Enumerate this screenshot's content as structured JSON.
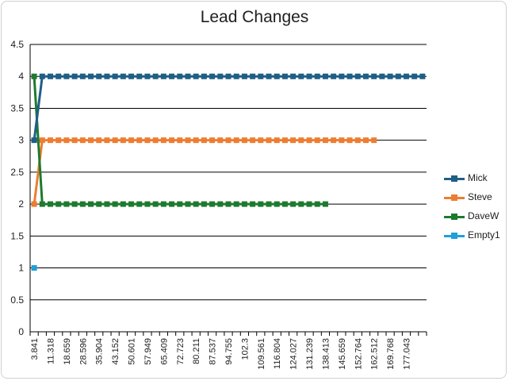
{
  "chart_data": {
    "type": "line",
    "title": "Lead Changes",
    "xlabel": "",
    "ylabel": "",
    "ylim": [
      0,
      4.5
    ],
    "y_ticks": [
      "0",
      "0.5",
      "1",
      "1.5",
      "2",
      "2.5",
      "3",
      "3.5",
      "4",
      "4.5"
    ],
    "grid": true,
    "legend_position": "right",
    "x_tick_labels": [
      "3.841",
      "11.318",
      "18.659",
      "28.596",
      "35.904",
      "43.152",
      "50.601",
      "57.949",
      "65.409",
      "72.723",
      "80.211",
      "87.537",
      "94.755",
      "102.3",
      "109.561",
      "116.804",
      "124.027",
      "131.239",
      "138.413",
      "145.659",
      "152.764",
      "162.512",
      "169.768",
      "177.043"
    ],
    "x_category_count": 49,
    "series": [
      {
        "name": "Mick",
        "color": "#1F5F85",
        "start_index": 0,
        "point_count": 49,
        "values_summary": [
          3,
          4
        ],
        "note_repeat": 4
      },
      {
        "name": "Steve",
        "color": "#ED7D31",
        "start_index": 0,
        "point_count": 43,
        "values_summary": [
          2,
          3
        ],
        "note_repeat": 3
      },
      {
        "name": "DaveW",
        "color": "#1E7A2E",
        "start_index": 0,
        "point_count": 37,
        "values_summary": [
          4,
          2
        ],
        "note_repeat": 2
      },
      {
        "name": "Empty1",
        "color": "#1FA0D8",
        "start_index": 0,
        "point_count": 1,
        "values_summary": [
          1
        ],
        "note_repeat": 1
      }
    ]
  }
}
